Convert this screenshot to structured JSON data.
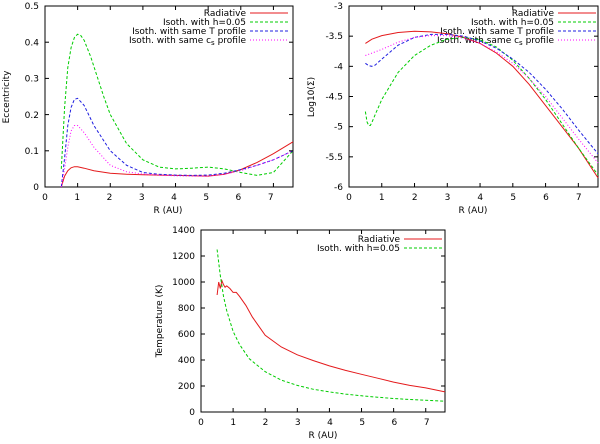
{
  "chart_data": [
    {
      "id": "ecc",
      "type": "line",
      "title": "",
      "xlabel": "R (AU)",
      "ylabel": "Eccentricity",
      "xlim": [
        0,
        7.6
      ],
      "ylim": [
        0,
        0.5
      ],
      "grid": false,
      "legend_position": "top-right",
      "x_ticks": [
        0,
        1,
        2,
        3,
        4,
        5,
        6,
        7
      ],
      "x_tick_labels": [
        "0",
        "1",
        "2",
        "3",
        "4",
        "5",
        "6",
        "7"
      ],
      "y_ticks": [
        0,
        0.1,
        0.2,
        0.3,
        0.4,
        0.5
      ],
      "y_tick_labels": [
        "0",
        "0.1",
        "0.2",
        "0.3",
        "0.4",
        "0.5"
      ],
      "series": [
        {
          "name": "Radiative",
          "color": "#e41a1c",
          "dash": "solid",
          "x": [
            0.5,
            0.6,
            0.7,
            0.8,
            0.9,
            1.0,
            1.2,
            1.5,
            2.0,
            2.5,
            3.0,
            3.5,
            4.0,
            4.5,
            5.0,
            5.5,
            6.0,
            6.5,
            7.0,
            7.6
          ],
          "y": [
            0.0,
            0.03,
            0.045,
            0.053,
            0.056,
            0.056,
            0.052,
            0.045,
            0.038,
            0.035,
            0.034,
            0.033,
            0.032,
            0.031,
            0.03,
            0.035,
            0.048,
            0.068,
            0.092,
            0.125
          ]
        },
        {
          "name": "Isoth. with h=0.05",
          "color": "#00cc00",
          "dash": "dashed",
          "x": [
            0.5,
            0.6,
            0.7,
            0.8,
            0.9,
            1.0,
            1.1,
            1.2,
            1.4,
            1.6,
            1.8,
            2.0,
            2.5,
            3.0,
            3.5,
            4.0,
            4.5,
            5.0,
            5.5,
            6.0,
            6.5,
            7.0,
            7.6
          ],
          "y": [
            0.05,
            0.22,
            0.33,
            0.385,
            0.413,
            0.422,
            0.418,
            0.405,
            0.36,
            0.305,
            0.25,
            0.2,
            0.12,
            0.075,
            0.055,
            0.05,
            0.052,
            0.055,
            0.05,
            0.04,
            0.032,
            0.04,
            0.1
          ]
        },
        {
          "name": "Isoth. with same T profile",
          "color": "#1f1fe0",
          "dash": "dashed",
          "x": [
            0.5,
            0.6,
            0.7,
            0.8,
            0.9,
            1.0,
            1.2,
            1.5,
            2.0,
            2.5,
            3.0,
            3.5,
            4.0,
            4.5,
            5.0,
            5.5,
            6.0,
            6.5,
            7.0,
            7.6
          ],
          "y": [
            0.0,
            0.08,
            0.17,
            0.22,
            0.242,
            0.245,
            0.225,
            0.17,
            0.1,
            0.06,
            0.04,
            0.035,
            0.033,
            0.032,
            0.033,
            0.038,
            0.048,
            0.06,
            0.075,
            0.1
          ]
        },
        {
          "name": "Isoth. with same c_s profile",
          "color": "#ff00ff",
          "dash": "dotted",
          "x": [
            0.5,
            0.6,
            0.7,
            0.8,
            0.9,
            1.0,
            1.2,
            1.5,
            2.0,
            2.5,
            3.0,
            3.5,
            4.0,
            4.5,
            5.0,
            5.5,
            6.0,
            6.5,
            7.0,
            7.6
          ],
          "y": [
            0.0,
            0.05,
            0.11,
            0.155,
            0.17,
            0.17,
            0.15,
            0.11,
            0.06,
            0.042,
            0.036,
            0.033,
            0.031,
            0.03,
            0.03,
            0.035,
            0.045,
            0.06,
            0.075,
            0.1
          ]
        }
      ]
    },
    {
      "id": "sigma",
      "type": "line",
      "title": "",
      "xlabel": "R (AU)",
      "ylabel": "Log10(Σ)",
      "xlim": [
        0,
        7.6
      ],
      "ylim": [
        -6,
        -3
      ],
      "grid": false,
      "legend_position": "top-right",
      "x_ticks": [
        0,
        1,
        2,
        3,
        4,
        5,
        6,
        7
      ],
      "x_tick_labels": [
        "0",
        "1",
        "2",
        "3",
        "4",
        "5",
        "6",
        "7"
      ],
      "y_ticks": [
        -6,
        -5.5,
        -5,
        -4.5,
        -4,
        -3.5,
        -3
      ],
      "y_tick_labels": [
        "-6",
        "-5.5",
        "-5",
        "-4.5",
        "-4",
        "-3.5",
        "-3"
      ],
      "series": [
        {
          "name": "Radiative",
          "color": "#e41a1c",
          "dash": "solid",
          "x": [
            0.5,
            0.7,
            1.0,
            1.5,
            2.0,
            2.5,
            3.0,
            3.5,
            4.0,
            4.5,
            5.0,
            5.5,
            6.0,
            6.5,
            7.0,
            7.6
          ],
          "y": [
            -3.62,
            -3.55,
            -3.49,
            -3.44,
            -3.42,
            -3.43,
            -3.46,
            -3.52,
            -3.62,
            -3.78,
            -4.0,
            -4.3,
            -4.65,
            -5.0,
            -5.35,
            -5.85
          ]
        },
        {
          "name": "Isoth. with h=0.05",
          "color": "#00cc00",
          "dash": "dashed",
          "x": [
            0.5,
            0.55,
            0.6,
            0.65,
            0.7,
            0.8,
            1.0,
            1.5,
            2.0,
            2.5,
            3.0,
            3.5,
            4.0,
            4.5,
            5.0,
            5.5,
            6.0,
            6.5,
            7.0,
            7.6
          ],
          "y": [
            -4.75,
            -4.92,
            -4.98,
            -4.98,
            -4.93,
            -4.8,
            -4.55,
            -4.1,
            -3.82,
            -3.65,
            -3.55,
            -3.52,
            -3.56,
            -3.68,
            -3.9,
            -4.2,
            -4.55,
            -4.95,
            -5.35,
            -5.8
          ]
        },
        {
          "name": "Isoth. with same T profile",
          "color": "#1f1fe0",
          "dash": "dashed",
          "x": [
            0.5,
            0.6,
            0.7,
            0.8,
            1.0,
            1.5,
            2.0,
            2.5,
            3.0,
            3.5,
            4.0,
            4.5,
            5.0,
            5.5,
            6.0,
            6.5,
            7.0,
            7.6
          ],
          "y": [
            -3.95,
            -3.99,
            -4.0,
            -3.98,
            -3.88,
            -3.65,
            -3.52,
            -3.47,
            -3.47,
            -3.5,
            -3.58,
            -3.7,
            -3.88,
            -4.1,
            -4.38,
            -4.7,
            -5.05,
            -5.45
          ]
        },
        {
          "name": "Isoth. with same c_s profile",
          "color": "#ff00ff",
          "dash": "dotted",
          "x": [
            0.5,
            0.7,
            1.0,
            1.5,
            2.0,
            2.5,
            3.0,
            3.5,
            4.0,
            4.5,
            5.0,
            5.5,
            6.0,
            6.5,
            7.0,
            7.6
          ],
          "y": [
            -3.82,
            -3.78,
            -3.72,
            -3.6,
            -3.52,
            -3.49,
            -3.49,
            -3.53,
            -3.62,
            -3.76,
            -3.95,
            -4.2,
            -4.5,
            -4.85,
            -5.2,
            -5.6
          ]
        }
      ]
    },
    {
      "id": "temp",
      "type": "line",
      "title": "",
      "xlabel": "R (AU)",
      "ylabel": "Temperature (K)",
      "xlim": [
        0,
        7.6
      ],
      "ylim": [
        0,
        1400
      ],
      "grid": false,
      "legend_position": "top-right",
      "x_ticks": [
        0,
        1,
        2,
        3,
        4,
        5,
        6,
        7
      ],
      "x_tick_labels": [
        "0",
        "1",
        "2",
        "3",
        "4",
        "5",
        "6",
        "7"
      ],
      "y_ticks": [
        0,
        200,
        400,
        600,
        800,
        1000,
        1200,
        1400
      ],
      "y_tick_labels": [
        "0",
        "200",
        "400",
        "600",
        "800",
        "1000",
        "1200",
        "1400"
      ],
      "series": [
        {
          "name": "Radiative",
          "color": "#e41a1c",
          "dash": "solid",
          "x": [
            0.5,
            0.55,
            0.6,
            0.65,
            0.7,
            0.75,
            0.8,
            0.9,
            1.0,
            1.1,
            1.2,
            1.4,
            1.6,
            1.8,
            2.0,
            2.5,
            3.0,
            3.5,
            4.0,
            4.5,
            5.0,
            5.5,
            6.0,
            6.5,
            7.0,
            7.6
          ],
          "y": [
            900,
            1000,
            950,
            1010,
            980,
            960,
            970,
            950,
            920,
            920,
            890,
            820,
            730,
            660,
            590,
            500,
            440,
            395,
            355,
            320,
            290,
            260,
            230,
            205,
            185,
            155
          ]
        },
        {
          "name": "Isoth. with h=0.05",
          "color": "#00cc00",
          "dash": "dashed",
          "x": [
            0.5,
            0.6,
            0.7,
            0.8,
            1.0,
            1.2,
            1.5,
            2.0,
            2.5,
            3.0,
            3.5,
            4.0,
            4.5,
            5.0,
            5.5,
            6.0,
            6.5,
            7.0,
            7.6
          ],
          "y": [
            1250,
            1050,
            890,
            780,
            620,
            520,
            410,
            310,
            245,
            205,
            175,
            155,
            138,
            125,
            114,
            104,
            96,
            90,
            83
          ]
        }
      ]
    }
  ]
}
